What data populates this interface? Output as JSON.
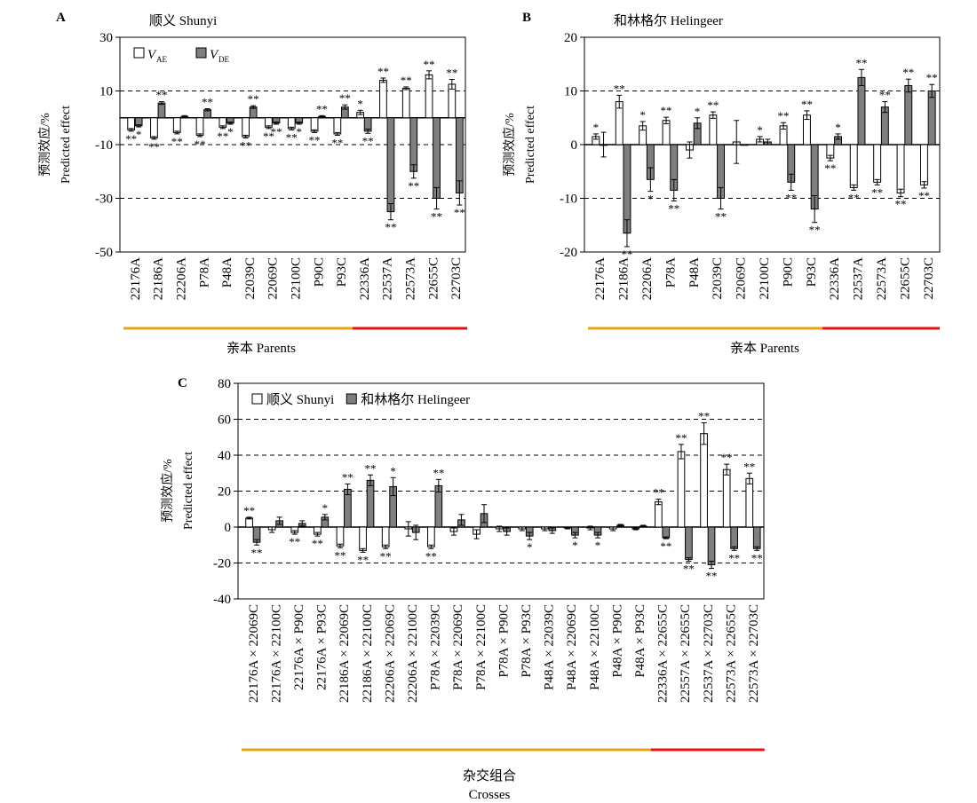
{
  "chart_data": [
    {
      "panel": "A",
      "type": "bar",
      "title": "顺义 Shunyi",
      "xlabel": "亲本 Parents",
      "ylabel_cn": "预测效应/%",
      "ylabel_en": "Predicted effect",
      "ylim": [
        -50,
        30
      ],
      "yticks": [
        -50,
        -30,
        -10,
        10,
        30
      ],
      "dashed_lines": [
        10,
        -10,
        -30
      ],
      "legend": {
        "position": "top-left",
        "entries": [
          {
            "main": "V",
            "sub": "AE",
            "color": "#ffffff"
          },
          {
            "main": "V",
            "sub": "DE",
            "color": "#7f7f7f"
          }
        ]
      },
      "categories": [
        "22176A",
        "22186A",
        "22206A",
        "P78A",
        "P48A",
        "22039C",
        "22069C",
        "22100C",
        "P90C",
        "P93C",
        "22336A",
        "22537A",
        "22573A",
        "22655C",
        "22703C"
      ],
      "series": [
        {
          "name": "VAE",
          "color": "#ffffff",
          "values": [
            -4.5,
            -7.5,
            -5.5,
            -6.5,
            -3.5,
            -7,
            -3.5,
            -4,
            -5,
            -6,
            2,
            14,
            11,
            16,
            12.5
          ],
          "errors": [
            0.5,
            0.5,
            0.5,
            0.5,
            0.5,
            0.5,
            0.5,
            0.5,
            0.5,
            0.5,
            0.8,
            0.8,
            0.5,
            1.5,
            1.8
          ],
          "sig": [
            "**",
            "**",
            "**",
            "**",
            "**",
            "**",
            "**",
            "**",
            "**",
            "**",
            "*",
            "**",
            "**",
            "**",
            "**"
          ]
        },
        {
          "name": "VDE",
          "color": "#7f7f7f",
          "values": [
            -3,
            5.5,
            0.5,
            3,
            -2,
            4,
            -2,
            -2,
            0.5,
            4,
            -5,
            -35,
            -20,
            -30,
            -28
          ],
          "errors": [
            0.4,
            0.5,
            0.3,
            0.4,
            0.4,
            0.5,
            0.4,
            0.4,
            0.3,
            0.8,
            0.8,
            3,
            2.5,
            4,
            4.5
          ],
          "sig": [
            "*",
            "**",
            "",
            "**",
            "*",
            "**",
            "**",
            "*",
            "**",
            "**",
            "**",
            "**",
            "**",
            "**",
            "**"
          ]
        }
      ],
      "group_lines": [
        {
          "from": 0,
          "to": 9,
          "color": "#e6a312"
        },
        {
          "from": 10,
          "to": 14,
          "color": "#ee1111"
        }
      ]
    },
    {
      "panel": "B",
      "type": "bar",
      "title": "和林格尔 Helingeer",
      "xlabel": "亲本 Parents",
      "ylabel_cn": "预测效应/%",
      "ylabel_en": "Predicted effect",
      "ylim": [
        -20,
        20
      ],
      "yticks": [
        -20,
        -10,
        0,
        10,
        20
      ],
      "dashed_lines": [
        10,
        -10
      ],
      "categories": [
        "22176A",
        "22186A",
        "22206A",
        "P78A",
        "P48A",
        "22039C",
        "22069C",
        "22100C",
        "P90C",
        "P93C",
        "22336A",
        "22537A",
        "22573A",
        "22655C",
        "22703C"
      ],
      "series": [
        {
          "name": "VAE",
          "color": "#ffffff",
          "values": [
            1.5,
            8,
            3.5,
            4.5,
            -1,
            5.5,
            0.5,
            1,
            3.5,
            5.5,
            -2.5,
            -8,
            -7,
            -9,
            -7.5
          ],
          "errors": [
            0.5,
            1.2,
            0.8,
            0.6,
            1.5,
            0.6,
            4,
            0.5,
            0.6,
            0.8,
            0.5,
            0.5,
            0.5,
            0.7,
            0.6
          ],
          "sig": [
            "*",
            "**",
            "*",
            "**",
            "",
            "**",
            "",
            "*",
            "**",
            "**",
            "**",
            "**",
            "**",
            "**",
            "**"
          ]
        },
        {
          "name": "VDE",
          "color": "#7f7f7f",
          "values": [
            0,
            -16.5,
            -6.5,
            -8.5,
            4,
            -10,
            0,
            0.5,
            -7,
            -12,
            1.5,
            12.5,
            7,
            11,
            10
          ],
          "errors": [
            2.3,
            2.5,
            2.2,
            2,
            1,
            2,
            0,
            0.5,
            1.5,
            2.5,
            0.5,
            1.5,
            1,
            1.2,
            1.2
          ],
          "sig": [
            "",
            "**",
            "*",
            "**",
            "*",
            "**",
            "",
            "",
            "**",
            "**",
            "*",
            "**",
            "**",
            "**",
            "**"
          ]
        }
      ],
      "group_lines": [
        {
          "from": 0,
          "to": 9,
          "color": "#e6a312"
        },
        {
          "from": 10,
          "to": 14,
          "color": "#ee1111"
        }
      ]
    },
    {
      "panel": "C",
      "type": "bar",
      "title": "",
      "xlabel_cn": "杂交组合",
      "xlabel_en": "Crosses",
      "ylabel_cn": "预测效应/%",
      "ylabel_en": "Predicted effect",
      "ylim": [
        -40,
        80
      ],
      "yticks": [
        -40,
        -20,
        0,
        20,
        40,
        60,
        80
      ],
      "dashed_lines": [
        60,
        40,
        20,
        -20
      ],
      "legend": {
        "position": "top-left",
        "entries": [
          {
            "label": "顺义 Shunyi",
            "color": "#ffffff"
          },
          {
            "label": "和林格尔 Helingeer",
            "color": "#7f7f7f"
          }
        ]
      },
      "categories": [
        "22176A × 22069C",
        "22176A × 22100C",
        "22176A × P90C",
        "22176A × P93C",
        "22186A × 22069C",
        "22186A × 22100C",
        "22206A × 22069C",
        "22206A × 22100C",
        "P78A × 22039C",
        "P78A × 22069C",
        "P78A × 22100C",
        "P78A × P90C",
        "P78A × P93C",
        "P48A × 22039C",
        "P48A × 22069C",
        "P48A × 22100C",
        "P48A × P90C",
        "P48A × P93C",
        "22336A × 22655C",
        "22557A × 22655C",
        "22537A × 22703C",
        "22573A × 22655C",
        "22573A × 22703C"
      ],
      "series": [
        {
          "name": "顺义 Shunyi",
          "color": "#ffffff",
          "values": [
            5,
            -1.5,
            -3,
            -4,
            -10.5,
            -13,
            -11,
            -1,
            -11,
            -2.5,
            -4,
            -1,
            -1,
            -1,
            -0.5,
            -0.5,
            -1,
            -1,
            14,
            42,
            52,
            32,
            27
          ],
          "errors": [
            0.5,
            1.5,
            1,
            1,
            1,
            1,
            1,
            4,
            1,
            2,
            2.5,
            1.5,
            1,
            1,
            0.5,
            1,
            1,
            0.5,
            1.5,
            4,
            6,
            3,
            3
          ],
          "sig": [
            "**",
            "",
            "**",
            "**",
            "**",
            "**",
            "**",
            "",
            "**",
            "",
            "",
            "",
            "",
            "",
            "",
            "",
            "",
            "",
            "**",
            "**",
            "**",
            "**",
            "**"
          ]
        },
        {
          "name": "和林格尔 Helingeer",
          "color": "#7f7f7f",
          "values": [
            -8.5,
            3.5,
            2,
            5.5,
            21,
            26,
            22.5,
            -3,
            23,
            4,
            7.5,
            -2.5,
            -5,
            -2,
            -4.5,
            -4.5,
            1,
            0.5,
            -6,
            -18,
            -21,
            -12,
            -12
          ],
          "errors": [
            1.5,
            2,
            1.5,
            1.5,
            3,
            3,
            5,
            4,
            3.5,
            3,
            5,
            2,
            2,
            1.5,
            1.5,
            1.5,
            0.5,
            0.5,
            0.5,
            1,
            2,
            1,
            1
          ],
          "sig": [
            "**",
            "",
            "",
            "*",
            "**",
            "**",
            "*",
            "",
            "**",
            "",
            "",
            "",
            "*",
            "",
            "*",
            "*",
            "",
            "",
            "**",
            "**",
            "**",
            "**",
            "**"
          ]
        }
      ],
      "group_lines": [
        {
          "from": 0,
          "to": 17,
          "color": "#e6a312"
        },
        {
          "from": 18,
          "to": 22,
          "color": "#ee1111"
        }
      ]
    }
  ],
  "panels": {
    "A": {
      "letter": "A",
      "title": "顺义 Shunyi",
      "ylabel_cn": "预测效应/%",
      "ylabel_en": "Predicted effect",
      "xlabel": "亲本 Parents"
    },
    "B": {
      "letter": "B",
      "title": "和林格尔 Helingeer",
      "ylabel_cn": "预测效应/%",
      "ylabel_en": "Predicted effect",
      "xlabel": "亲本 Parents"
    },
    "C": {
      "letter": "C",
      "ylabel_cn": "预测效应/%",
      "ylabel_en": "Predicted effect",
      "xlabel_cn": "杂交组合",
      "xlabel_en": "Crosses"
    }
  },
  "colors": {
    "open_bar": "#ffffff",
    "shaded_bar": "#7f7f7f",
    "group_orange": "#e6a312",
    "group_red": "#ee1111"
  }
}
